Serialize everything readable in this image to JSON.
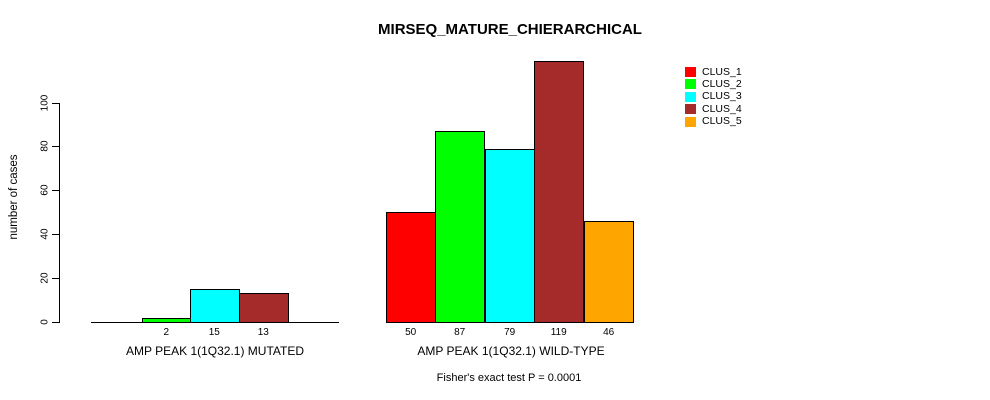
{
  "chart_data": {
    "type": "bar",
    "title": "MIRSEQ_MATURE_CHIERARCHICAL",
    "ylabel": "number of cases",
    "yticks": [
      0,
      20,
      40,
      60,
      80,
      100
    ],
    "ylim": [
      0,
      125
    ],
    "grid": false,
    "legend_position": "top-right",
    "categories": [
      "AMP PEAK  1(1Q32.1) MUTATED",
      "AMP PEAK  1(1Q32.1) WILD-TYPE"
    ],
    "series": [
      {
        "name": "CLUS_1",
        "color": "#FF0000",
        "values": [
          0,
          50
        ]
      },
      {
        "name": "CLUS_2",
        "color": "#00FF00",
        "values": [
          2,
          87
        ]
      },
      {
        "name": "CLUS_3",
        "color": "#00FFFF",
        "values": [
          15,
          79
        ]
      },
      {
        "name": "CLUS_4",
        "color": "#A52A2A",
        "values": [
          13,
          119
        ]
      },
      {
        "name": "CLUS_5",
        "color": "#FFA500",
        "values": [
          0,
          46
        ]
      }
    ],
    "show_zero_value_labels": false,
    "annotation": "Fisher's exact test P = 0.0001"
  }
}
